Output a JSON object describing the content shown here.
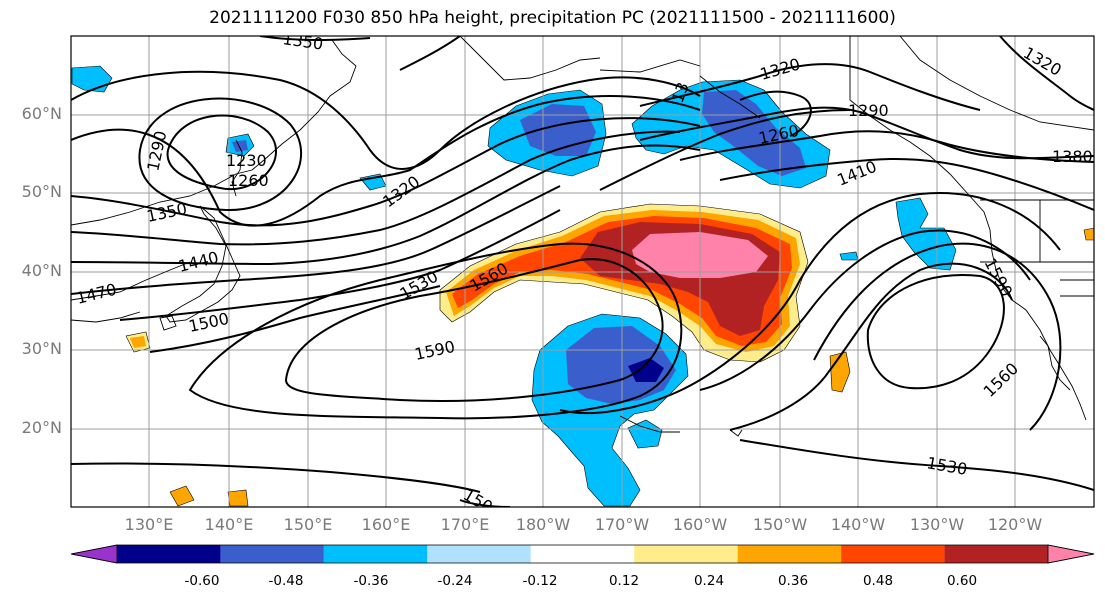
{
  "title": "2021111200 F030 850 hPa height, precipitation PC (2021111500 - 2021111600)",
  "latitude_labels": [
    "60°N",
    "50°N",
    "40°N",
    "30°N",
    "20°N"
  ],
  "longitude_labels": [
    "130°E",
    "140°E",
    "150°E",
    "160°E",
    "170°E",
    "180°W",
    "170°W",
    "160°W",
    "150°W",
    "140°W",
    "130°W",
    "120°W"
  ],
  "contour_labels": [
    "1350",
    "1290",
    "1230",
    "1260",
    "1350",
    "1320",
    "1440",
    "1470",
    "1500",
    "1530",
    "1560",
    "1590",
    "1320",
    "1290",
    "1260",
    "1410",
    "1380",
    "1320",
    "1590",
    "1560",
    "1530",
    "150",
    "13"
  ],
  "colorbar": {
    "colors": [
      "#9a32cd",
      "#00008b",
      "#3a5fcd",
      "#00bfff",
      "#b0e2ff",
      "#ffffff",
      "#ffec8b",
      "#ffa500",
      "#ff4500",
      "#b22222",
      "#ff82ab"
    ],
    "tick_labels": [
      "-0.60",
      "-0.48",
      "-0.36",
      "-0.24",
      "-0.12",
      "0.12",
      "0.24",
      "0.36",
      "0.48",
      "0.60"
    ]
  }
}
